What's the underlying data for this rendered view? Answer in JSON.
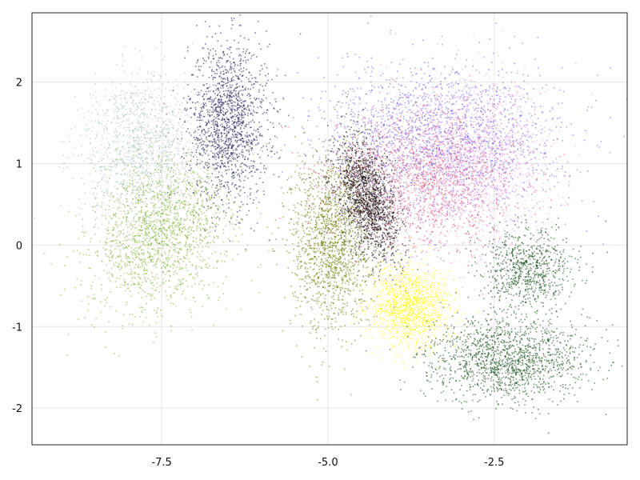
{
  "chart_data": {
    "type": "scatter",
    "title": "",
    "xlabel": "",
    "ylabel": "",
    "xlim": [
      -9.45,
      -0.5
    ],
    "ylim": [
      -2.45,
      2.85
    ],
    "grid": true,
    "x_ticks": [
      -7.5,
      -5.0,
      -2.5
    ],
    "x_tick_labels": [
      "-7.5",
      "-5.0",
      "-2.5"
    ],
    "y_ticks": [
      -2,
      -1,
      0,
      1,
      2
    ],
    "y_tick_labels": [
      "-2",
      "-1",
      "0",
      "1",
      "2"
    ],
    "legend": "none",
    "series": [
      {
        "color": "#a9c2bd",
        "n": 1300,
        "center": [
          -7.8,
          1.2
        ],
        "spread": [
          0.45,
          0.45
        ],
        "rotation": 35
      },
      {
        "color": "#191a52",
        "n": 1500,
        "center": [
          -6.5,
          1.5
        ],
        "spread": [
          0.3,
          0.5
        ],
        "rotation": 0
      },
      {
        "color": "#7fb335",
        "n": 1700,
        "center": [
          -7.5,
          0.15
        ],
        "spread": [
          0.55,
          0.4
        ],
        "rotation": 30
      },
      {
        "color": "#6f7a00",
        "n": 1500,
        "center": [
          -4.95,
          0.05
        ],
        "spread": [
          0.3,
          0.55
        ],
        "rotation": 0
      },
      {
        "color": "#7a5be8",
        "n": 2000,
        "center": [
          -3.3,
          1.3
        ],
        "spread": [
          0.9,
          0.45
        ],
        "rotation": 0
      },
      {
        "color": "#e6a3e6",
        "n": 1400,
        "center": [
          -2.8,
          1.0
        ],
        "spread": [
          0.55,
          0.5
        ],
        "rotation": 0
      },
      {
        "color": "#e05577",
        "n": 1500,
        "center": [
          -3.5,
          0.8
        ],
        "spread": [
          0.7,
          0.45
        ],
        "rotation": 0
      },
      {
        "color": "#1a0a0d",
        "n": 1600,
        "center": [
          -4.4,
          0.55
        ],
        "spread": [
          0.2,
          0.4
        ],
        "rotation": 20
      },
      {
        "color": "#ffff1a",
        "n": 1300,
        "center": [
          -3.75,
          -0.75
        ],
        "spread": [
          0.3,
          0.25
        ],
        "rotation": 0
      },
      {
        "color": "#0f4a12",
        "n": 1500,
        "center": [
          -2.3,
          -1.4
        ],
        "spread": [
          0.6,
          0.25
        ],
        "rotation": 0
      },
      {
        "color": "#0f4a12",
        "n": 800,
        "center": [
          -2.0,
          -0.3
        ],
        "spread": [
          0.35,
          0.25
        ],
        "rotation": 0
      }
    ]
  }
}
